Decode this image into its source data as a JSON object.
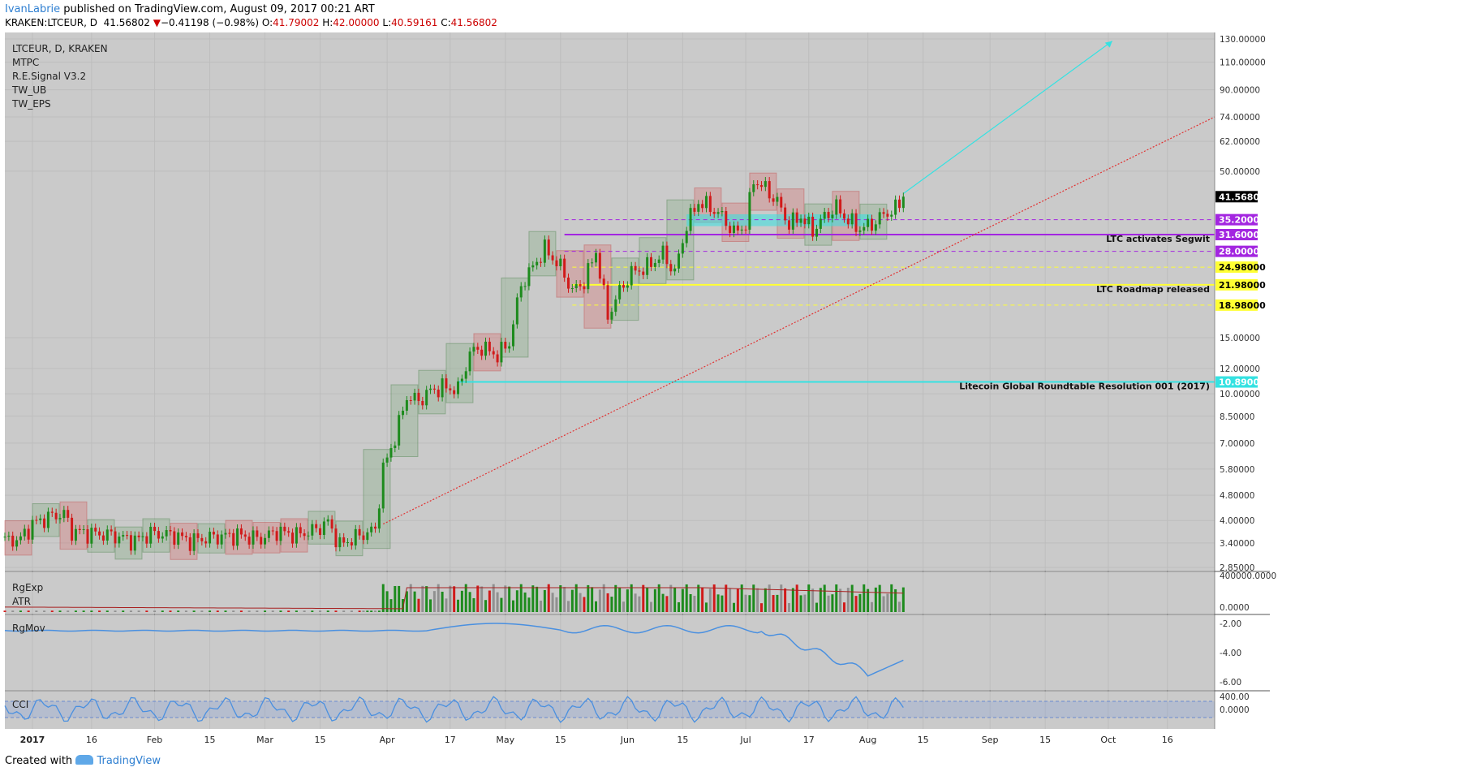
{
  "header": {
    "author": "IvanLabrie",
    "published_text": "published on TradingView.com, August 09, 2017 00:21 ART",
    "symbol_line": "KRAKEN:LTCEUR, D",
    "last": "41.56802",
    "change_arrow": "▼",
    "change": "−0.41198 (−0.98%)",
    "o_label": "O:",
    "o": "41.79002",
    "h_label": "H:",
    "h": "42.00000",
    "l_label": "L:",
    "l": "40.59161",
    "c_label": "C:",
    "c": "41.56802"
  },
  "legend": {
    "main": [
      "LTCEUR, D, KRAKEN",
      "MTPC",
      "R.E.Signal V3.2",
      "TW_UB",
      "TW_EPS"
    ],
    "pane_vol": [
      "RgExp",
      "ATR"
    ],
    "pane_mov": "RgMov",
    "pane_cci": "CCI"
  },
  "footer": {
    "created_with": "Created with",
    "brand": "TradingView"
  },
  "colors": {
    "panel_bg": "#cacaca",
    "up": "#1d8b1d",
    "down": "#d11a1a",
    "cyan": "#35e2e2",
    "purple": "#a326e0",
    "yellow": "#ffff33",
    "blue_line": "#4a90e0",
    "trend_red": "#e23131"
  },
  "chart_data": {
    "type": "candlestick",
    "symbol": "LTCEUR, D, KRAKEN",
    "y_scale": "log",
    "ylim": [
      2.85,
      130
    ],
    "y_ticks": [
      "130.00000",
      "110.00000",
      "90.00000",
      "74.00000",
      "62.00000",
      "50.00000",
      "41.56802",
      "35.20000",
      "31.60000",
      "28.00000",
      "24.98000",
      "21.98000",
      "18.98000",
      "15.00000",
      "12.00000",
      "10.89000",
      "10.00000",
      "8.50000",
      "7.00000",
      "5.80000",
      "4.80000",
      "4.00000",
      "3.40000",
      "2.85000"
    ],
    "plain_ticks": [
      130,
      110,
      90,
      74,
      62,
      50,
      15,
      12,
      10,
      8.5,
      7,
      5.8,
      4.8,
      4,
      3.4,
      2.85
    ],
    "x_ticks": [
      {
        "label": "2017",
        "day": 0
      },
      {
        "label": "16",
        "day": 15
      },
      {
        "label": "Feb",
        "day": 31
      },
      {
        "label": "15",
        "day": 45
      },
      {
        "label": "Mar",
        "day": 59
      },
      {
        "label": "15",
        "day": 73
      },
      {
        "label": "Apr",
        "day": 90
      },
      {
        "label": "17",
        "day": 106
      },
      {
        "label": "May",
        "day": 120
      },
      {
        "label": "15",
        "day": 134
      },
      {
        "label": "Jun",
        "day": 151
      },
      {
        "label": "15",
        "day": 165
      },
      {
        "label": "Jul",
        "day": 181
      },
      {
        "label": "17",
        "day": 197
      },
      {
        "label": "Aug",
        "day": 212
      },
      {
        "label": "15",
        "day": 226
      },
      {
        "label": "Sep",
        "day": 243
      },
      {
        "label": "15",
        "day": 257
      },
      {
        "label": "Oct",
        "day": 273
      },
      {
        "label": "16",
        "day": 288
      }
    ],
    "x_range_days": [
      -7,
      300
    ],
    "price_path": [
      {
        "day": -7,
        "v": 3.45
      },
      {
        "day": -3,
        "v": 3.5
      },
      {
        "day": 0,
        "v": 3.9
      },
      {
        "day": 4,
        "v": 4.1
      },
      {
        "day": 8,
        "v": 4.2
      },
      {
        "day": 10,
        "v": 3.7
      },
      {
        "day": 14,
        "v": 3.65
      },
      {
        "day": 20,
        "v": 3.6
      },
      {
        "day": 26,
        "v": 3.45
      },
      {
        "day": 30,
        "v": 3.65
      },
      {
        "day": 36,
        "v": 3.6
      },
      {
        "day": 40,
        "v": 3.45
      },
      {
        "day": 46,
        "v": 3.55
      },
      {
        "day": 52,
        "v": 3.6
      },
      {
        "day": 58,
        "v": 3.5
      },
      {
        "day": 62,
        "v": 3.7
      },
      {
        "day": 67,
        "v": 3.6
      },
      {
        "day": 72,
        "v": 3.75
      },
      {
        "day": 75,
        "v": 3.95
      },
      {
        "day": 78,
        "v": 3.35
      },
      {
        "day": 82,
        "v": 3.55
      },
      {
        "day": 86,
        "v": 3.7
      },
      {
        "day": 87,
        "v": 3.75
      },
      {
        "day": 89,
        "v": 5.8
      },
      {
        "day": 92,
        "v": 7.3
      },
      {
        "day": 95,
        "v": 9.8
      },
      {
        "day": 98,
        "v": 9.5
      },
      {
        "day": 101,
        "v": 10.2
      },
      {
        "day": 104,
        "v": 10.5
      },
      {
        "day": 108,
        "v": 10.3
      },
      {
        "day": 111,
        "v": 13.4
      },
      {
        "day": 114,
        "v": 14.0
      },
      {
        "day": 118,
        "v": 13.2
      },
      {
        "day": 121,
        "v": 14.5
      },
      {
        "day": 124,
        "v": 22.0
      },
      {
        "day": 127,
        "v": 25.0
      },
      {
        "day": 130,
        "v": 28.5
      },
      {
        "day": 134,
        "v": 25.0
      },
      {
        "day": 137,
        "v": 21.0
      },
      {
        "day": 140,
        "v": 22.5
      },
      {
        "day": 143,
        "v": 28.0
      },
      {
        "day": 146,
        "v": 17.5
      },
      {
        "day": 149,
        "v": 21.0
      },
      {
        "day": 152,
        "v": 24.0
      },
      {
        "day": 156,
        "v": 25.0
      },
      {
        "day": 160,
        "v": 27.5
      },
      {
        "day": 163,
        "v": 24.0
      },
      {
        "day": 166,
        "v": 34.0
      },
      {
        "day": 169,
        "v": 40.0
      },
      {
        "day": 172,
        "v": 38.5
      },
      {
        "day": 175,
        "v": 36.0
      },
      {
        "day": 178,
        "v": 32.0
      },
      {
        "day": 181,
        "v": 34.0
      },
      {
        "day": 183,
        "v": 47.0
      },
      {
        "day": 186,
        "v": 44.0
      },
      {
        "day": 189,
        "v": 40.0
      },
      {
        "day": 192,
        "v": 34.0
      },
      {
        "day": 195,
        "v": 36.0
      },
      {
        "day": 198,
        "v": 32.5
      },
      {
        "day": 201,
        "v": 36.0
      },
      {
        "day": 204,
        "v": 38.5
      },
      {
        "day": 207,
        "v": 35.0
      },
      {
        "day": 210,
        "v": 33.0
      },
      {
        "day": 213,
        "v": 34.0
      },
      {
        "day": 216,
        "v": 36.5
      },
      {
        "day": 219,
        "v": 38.0
      },
      {
        "day": 221,
        "v": 41.56802
      }
    ],
    "last_price": 41.56802,
    "levels": [
      {
        "price": 35.2,
        "label": "35.20000",
        "color": "#a326e0",
        "style": "dashed",
        "start_day": 135
      },
      {
        "price": 31.6,
        "label": "31.60000",
        "color": "#a326e0",
        "style": "solid",
        "start_day": 135,
        "note": "LTC activates Segwit"
      },
      {
        "price": 28.0,
        "label": "28.00000",
        "color": "#a326e0",
        "style": "dashed",
        "start_day": 135
      },
      {
        "price": 24.98,
        "label": "24.98000",
        "color": "#ffff33",
        "style": "dashed",
        "start_day": 137
      },
      {
        "price": 21.98,
        "label": "21.98000",
        "color": "#ffff33",
        "style": "solid",
        "start_day": 137,
        "note": "LTC Roadmap released"
      },
      {
        "price": 18.98,
        "label": "18.98000",
        "color": "#ffff33",
        "style": "dashed",
        "start_day": 137
      },
      {
        "price": 10.89,
        "label": "10.89000",
        "color": "#35e2e2",
        "style": "solid",
        "start_day": 108,
        "note": "Litecoin Global Roundtable Resolution 001 (2017)"
      }
    ],
    "trendline": {
      "from": {
        "day": 89,
        "v": 3.9
      },
      "to": {
        "day": 300,
        "v": 74
      }
    },
    "projection": {
      "from": {
        "day": 221,
        "v": 42.5
      },
      "to": {
        "day": 274,
        "v": 128
      }
    },
    "panes": {
      "volume": {
        "axis_labels": [
          "400000.0000",
          "0.0000"
        ]
      },
      "rgmov": {
        "axis_labels": [
          "-2.00",
          "-4.00",
          "-6.00"
        ]
      },
      "cci": {
        "axis_labels": [
          "400.00",
          "0.0000"
        ]
      }
    }
  }
}
